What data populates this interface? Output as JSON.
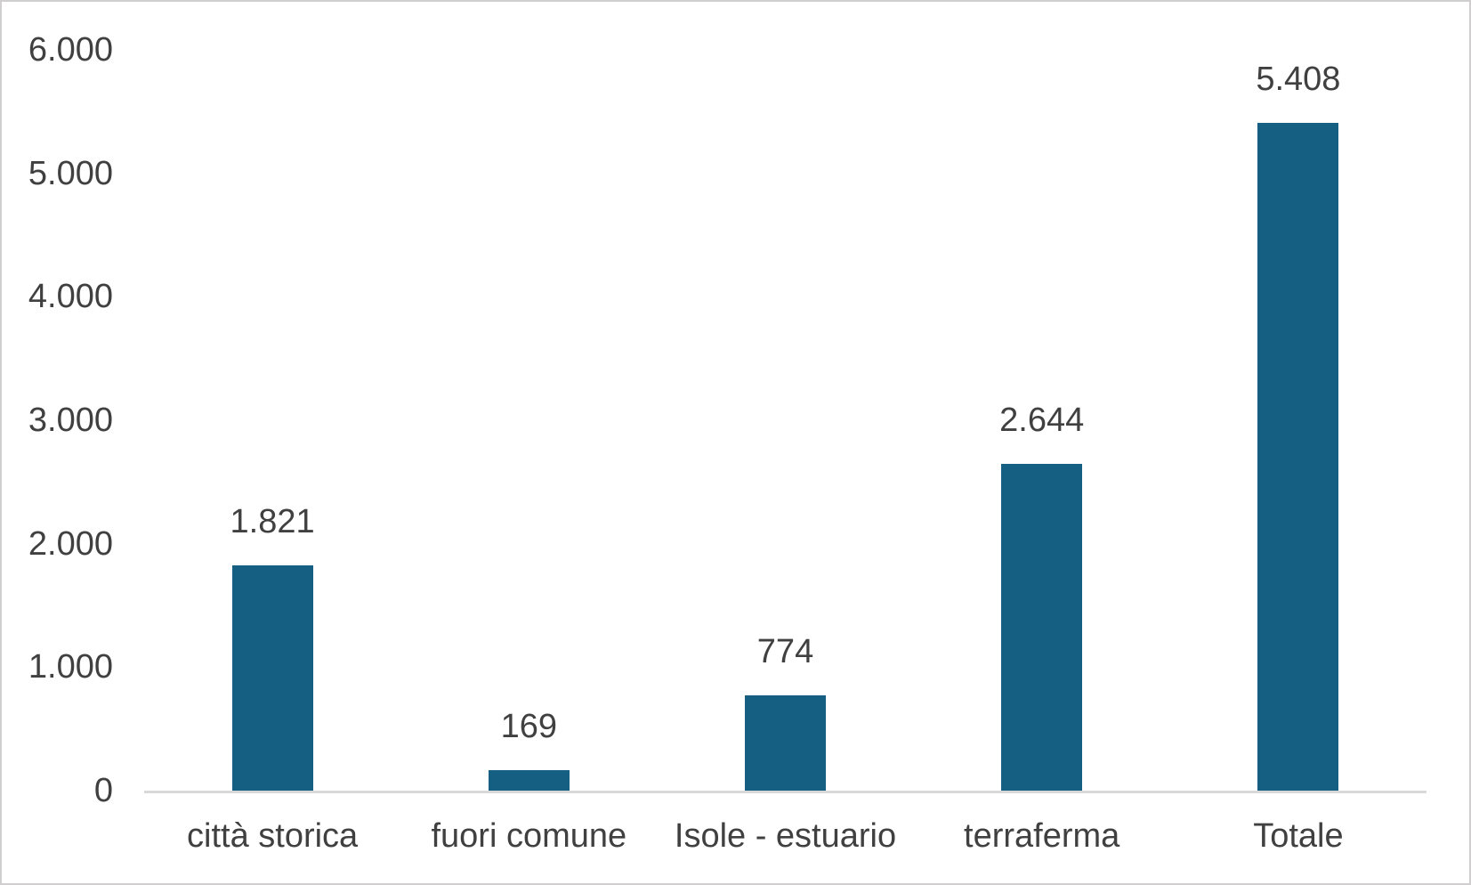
{
  "chart_data": {
    "type": "bar",
    "title": "",
    "categories": [
      "città storica",
      "fuori comune",
      "Isole - estuario",
      "terraferma",
      "Totale"
    ],
    "values": [
      1821,
      169,
      774,
      2644,
      5408
    ],
    "value_labels": [
      "1.821",
      "169",
      "774",
      "2.644",
      "5.408"
    ],
    "series": [
      {
        "name": "",
        "values": [
          1821,
          169,
          774,
          2644,
          5408
        ]
      }
    ],
    "y_ticks": [
      {
        "value": 0,
        "label": "0"
      },
      {
        "value": 1000,
        "label": "1.000"
      },
      {
        "value": 2000,
        "label": "2.000"
      },
      {
        "value": 3000,
        "label": "3.000"
      },
      {
        "value": 4000,
        "label": "4.000"
      },
      {
        "value": 5000,
        "label": "5.000"
      },
      {
        "value": 6000,
        "label": "6.000"
      }
    ],
    "ylim": [
      0,
      6000
    ],
    "xlabel": "",
    "ylabel": "",
    "grid": false,
    "legend": false,
    "data_label_position": "outside-end",
    "colors": {
      "bar": "#156082",
      "text": "#404040",
      "axis_line": "#d9d9d9",
      "border": "#d0cece",
      "background": "#ffffff"
    }
  }
}
